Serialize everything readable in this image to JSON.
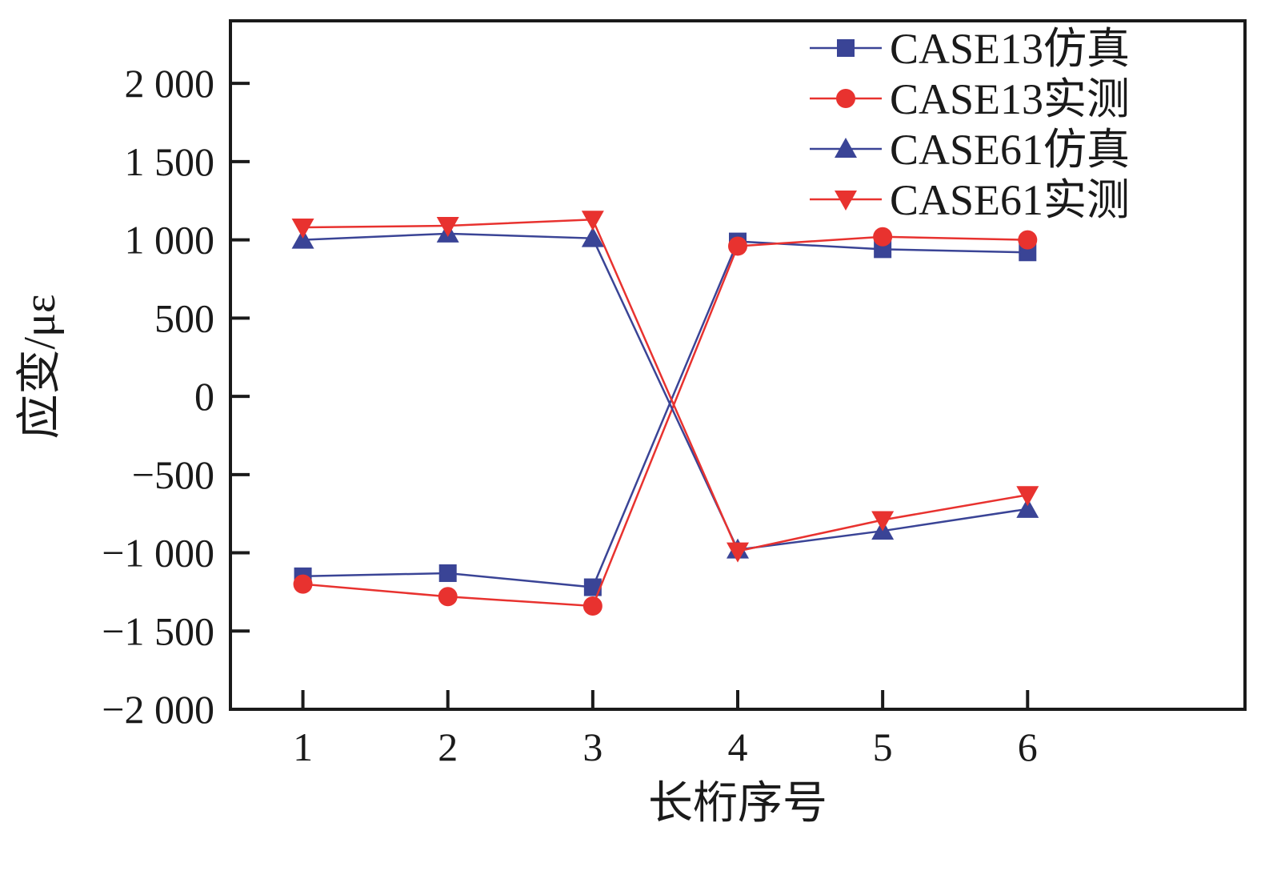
{
  "chart_data": {
    "type": "line",
    "xlabel": "长桁序号",
    "ylabel": "应变/με",
    "x": [
      1,
      2,
      3,
      4,
      5,
      6
    ],
    "xlim": [
      0.5,
      7.5
    ],
    "ylim": [
      -2000,
      2400
    ],
    "xticks": [
      1,
      2,
      3,
      4,
      5,
      6
    ],
    "yticks": [
      -2000,
      -1500,
      -1000,
      -500,
      0,
      500,
      1000,
      1500,
      2000
    ],
    "ytick_labels": [
      "−2 000",
      "−1 500",
      "−1 000",
      "−500",
      "0",
      "500",
      "1 000",
      "1 500",
      "2 000"
    ],
    "grid": false,
    "legend_position": "top-right",
    "series": [
      {
        "name": "CASE13仿真",
        "marker": "square",
        "color": "#3a4496",
        "values": [
          -1150,
          -1130,
          -1220,
          990,
          940,
          920
        ]
      },
      {
        "name": "CASE13实测",
        "marker": "circle",
        "color": "#e8322f",
        "values": [
          -1200,
          -1280,
          -1340,
          960,
          1020,
          1000
        ]
      },
      {
        "name": "CASE61仿真",
        "marker": "triangle-up",
        "color": "#3a4496",
        "values": [
          1000,
          1040,
          1010,
          -980,
          -860,
          -720
        ]
      },
      {
        "name": "CASE61实测",
        "marker": "triangle-down",
        "color": "#e8322f",
        "values": [
          1080,
          1090,
          1130,
          -990,
          -790,
          -630
        ]
      }
    ]
  }
}
